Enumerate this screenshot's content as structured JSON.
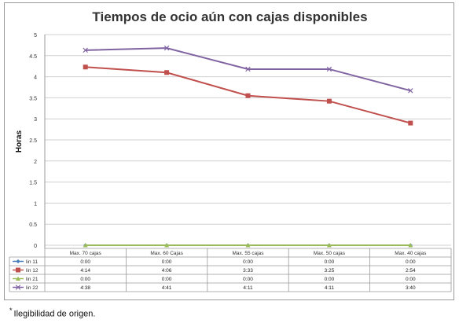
{
  "chart_data": {
    "type": "line",
    "title": "Tiempos de ocio aún con cajas disponibles",
    "ylabel": "Horas",
    "xlabel": "",
    "ylim": [
      0,
      5
    ],
    "yticks": [
      "0",
      "0.5",
      "1",
      "1.5",
      "2",
      "2.5",
      "3",
      "3.5",
      "4",
      "4.5",
      "5"
    ],
    "categories": [
      "Max. 70 cajas",
      "Max. 60 Cajas",
      "Max. 55 cajas",
      "Max. 50 cajas",
      "Max. 40 cajas"
    ],
    "grid": true,
    "legend": "data-table",
    "series": [
      {
        "name": "lin 11",
        "color": "#4a7ebb",
        "marker": "diamond",
        "values": [
          0,
          0,
          0,
          0,
          0
        ],
        "labels": [
          "0:00",
          "0:00",
          "0:00",
          "0:00",
          "0:00"
        ]
      },
      {
        "name": "lin 12",
        "color": "#c0504d",
        "marker": "square",
        "values": [
          4.23,
          4.1,
          3.55,
          3.42,
          2.9
        ],
        "labels": [
          "4:14",
          "4:06",
          "3:33",
          "3:25",
          "2:54"
        ]
      },
      {
        "name": "lin 21",
        "color": "#9bbb59",
        "marker": "triangle",
        "values": [
          0,
          0,
          0,
          0,
          0
        ],
        "labels": [
          "0:00",
          "0:00",
          "0:00",
          "0:00",
          "0:00"
        ]
      },
      {
        "name": "lin 22",
        "color": "#8064a2",
        "marker": "x",
        "values": [
          4.63,
          4.68,
          4.18,
          4.18,
          3.67
        ],
        "labels": [
          "4:38",
          "4:41",
          "4:11",
          "4:11",
          "3:40"
        ]
      }
    ]
  },
  "footnote": {
    "marker": "*",
    "text": "Ilegibilidad de origen."
  }
}
